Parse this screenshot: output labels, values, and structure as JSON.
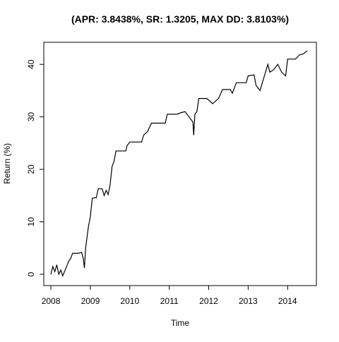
{
  "chart_data": {
    "type": "line",
    "title": "(APR: 3.8438%, SR: 1.3205, MAX DD: 3.8103%)",
    "xlabel": "Time",
    "ylabel": "Return (%)",
    "x": [
      2008.0,
      2008.05,
      2008.1,
      2008.15,
      2008.2,
      2008.25,
      2008.3,
      2008.4,
      2008.45,
      2008.5,
      2008.55,
      2008.7,
      2008.78,
      2008.82,
      2008.85,
      2008.88,
      2008.95,
      2009.0,
      2009.05,
      2009.15,
      2009.2,
      2009.3,
      2009.35,
      2009.4,
      2009.45,
      2009.5,
      2009.55,
      2009.6,
      2009.65,
      2009.9,
      2009.93,
      2010.0,
      2010.3,
      2010.35,
      2010.45,
      2010.55,
      2010.9,
      2010.95,
      2011.2,
      2011.3,
      2011.4,
      2011.5,
      2011.6,
      2011.62,
      2011.65,
      2011.7,
      2011.75,
      2011.95,
      2012.0,
      2012.1,
      2012.25,
      2012.35,
      2012.55,
      2012.6,
      2012.7,
      2012.95,
      2013.0,
      2013.15,
      2013.2,
      2013.3,
      2013.4,
      2013.5,
      2013.55,
      2013.65,
      2013.75,
      2013.85,
      2013.95,
      2014.0,
      2014.2,
      2014.3,
      2014.4,
      2014.5
    ],
    "series": [
      {
        "name": "Return",
        "color": "#000000",
        "values": [
          0,
          1.5,
          0.5,
          1.8,
          0,
          0.8,
          -0.3,
          1.5,
          2.5,
          3,
          4,
          4,
          4.2,
          3,
          1.2,
          5,
          9,
          11,
          14.5,
          14.6,
          16.3,
          16.3,
          15,
          16,
          15.2,
          17,
          20.5,
          21.5,
          23.5,
          23.5,
          24.5,
          25.2,
          25.2,
          26.5,
          27.2,
          28.8,
          28.8,
          30.5,
          30.5,
          30.8,
          31,
          30,
          29,
          26.5,
          30.5,
          31,
          33.5,
          33.5,
          33.2,
          32.5,
          33.5,
          35.2,
          35.2,
          34.5,
          36.5,
          36.5,
          37.8,
          38,
          36,
          35,
          37.5,
          40,
          38.5,
          39,
          40,
          38.5,
          37.8,
          41,
          41,
          41.8,
          42,
          42.6
        ]
      }
    ],
    "xlim": [
      2007.82,
      2014.73
    ],
    "xticks": [
      2008,
      2009,
      2010,
      2011,
      2012,
      2013,
      2014
    ],
    "ylim": [
      -2.15,
      44.2
    ],
    "yticks": [
      0,
      10,
      20,
      30,
      40
    ]
  }
}
